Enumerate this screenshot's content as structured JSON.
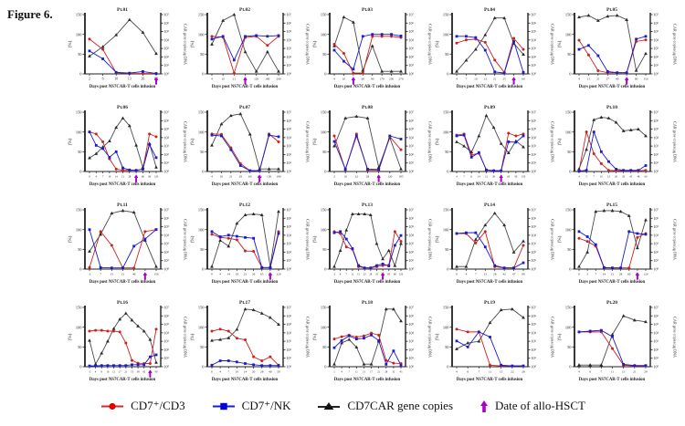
{
  "figure_label": "Figure 6.",
  "colors": {
    "cd7_cd3": "#cf2020",
    "cd7_nk": "#1a1acf",
    "car_line": "#4a4a4a",
    "car_marker": "#2a2a2a",
    "hsct": "#aa00cc",
    "axis": "#222222"
  },
  "legend": {
    "items": [
      {
        "name": "cd7-cd3",
        "label": "CD7⁺/CD3",
        "marker": "red-circle",
        "color": "#e00000"
      },
      {
        "name": "cd7-nk",
        "label": "CD7⁺/NK",
        "marker": "blue-square",
        "color": "#0000e0"
      },
      {
        "name": "car-copies",
        "label": "CD7CAR gene copies",
        "marker": "black-triangle",
        "color": "#111111"
      },
      {
        "name": "allo-hsct",
        "label": "Date of allo-HSCT",
        "marker": "purple-arrow",
        "color": "#aa00cc"
      }
    ]
  },
  "chart_data": {
    "type": "line",
    "layout": "4 rows x 5 columns of patient panels",
    "axes": {
      "left_label": "(%)",
      "left_ticks": [
        0,
        50,
        100,
        150
      ],
      "left_range": [
        0,
        150
      ],
      "right_label": "CAR gene copies/μg DNA",
      "right_ticks": [
        "10⁷",
        "10⁶",
        "10⁵",
        "10⁴",
        "10³",
        "10²",
        "10¹",
        "10⁰"
      ],
      "right_range_log10": [
        0,
        7
      ],
      "x_label": "Days post NS7CAR-T cells infusion"
    },
    "series_legend": [
      "CD7⁺/CD3 (% left axis)",
      "CD7⁺/NK (% left axis)",
      "CD7CAR gene copies (log10 copies/μg DNA, right axis)"
    ],
    "panels": [
      {
        "title": "Pt.01",
        "x": [
          2,
          6,
          10,
          13,
          26,
          60
        ],
        "cd7_cd3_pct": [
          88,
          62,
          3,
          1,
          1,
          1
        ],
        "cd7_nk_pct": [
          58,
          38,
          4,
          2,
          6,
          1
        ],
        "car_copies_log10": [
          2.1,
          3.2,
          4.6,
          6.4,
          4.9,
          2.4
        ],
        "allo_hsct_day": 60
      },
      {
        "title": "Pt.02",
        "x": [
          4,
          10,
          21,
          60,
          120,
          180,
          240
        ],
        "cd7_cd3_pct": [
          95,
          93,
          2,
          92,
          95,
          72,
          95
        ],
        "cd7_nk_pct": [
          88,
          95,
          35,
          95,
          97,
          95,
          97
        ],
        "car_copies_log10": [
          3.5,
          6.3,
          7.0,
          2.6,
          0.3,
          2.6,
          0.3
        ],
        "allo_hsct_day": 60
      },
      {
        "title": "Pt.03",
        "x": [
          4,
          10,
          30,
          60,
          90,
          170,
          230,
          270
        ],
        "cd7_cd3_pct": [
          75,
          52,
          2,
          2,
          95,
          95,
          95,
          92
        ],
        "cd7_nk_pct": [
          60,
          32,
          12,
          95,
          100,
          100,
          100,
          96
        ],
        "car_copies_log10": [
          3.3,
          6.7,
          6.1,
          0.4,
          3.3,
          0.3,
          0.3,
          0.3
        ],
        "allo_hsct_day": 30
      },
      {
        "title": "Pt.04",
        "x": [
          4,
          7,
          10,
          13,
          21,
          25,
          40,
          60
        ],
        "cd7_cd3_pct": [
          78,
          86,
          88,
          80,
          35,
          4,
          90,
          62
        ],
        "cd7_nk_pct": [
          95,
          95,
          92,
          60,
          5,
          2,
          82,
          4
        ],
        "car_copies_log10": [
          0.3,
          1.6,
          2.9,
          4.6,
          6.6,
          6.6,
          3.6,
          2.3
        ],
        "allo_hsct_day": 40
      },
      {
        "title": "Pt.05",
        "x": [
          4,
          11,
          21,
          27,
          40,
          56,
          90,
          150
        ],
        "cd7_cd3_pct": [
          85,
          48,
          8,
          3,
          3,
          3,
          82,
          86
        ],
        "cd7_nk_pct": [
          62,
          72,
          46,
          6,
          3,
          3,
          88,
          95
        ],
        "car_copies_log10": [
          6.7,
          6.9,
          6.3,
          6.8,
          6.9,
          6.4,
          0.4,
          2.4
        ],
        "allo_hsct_day": 56
      },
      {
        "title": "Pt.06",
        "x": [
          0,
          4,
          7,
          10,
          14,
          21,
          28,
          45,
          60,
          90,
          120
        ],
        "cd7_cd3_pct": [
          100,
          95,
          75,
          32,
          6,
          3,
          3,
          3,
          6,
          95,
          88
        ],
        "cd7_nk_pct": [
          100,
          66,
          58,
          36,
          50,
          9,
          4,
          3,
          6,
          68,
          35
        ],
        "car_copies_log10": [
          1.6,
          2.1,
          2.9,
          3.6,
          5.2,
          6.3,
          5.4,
          3.1,
          0.5,
          3.3,
          0.5
        ],
        "allo_hsct_day": 45
      },
      {
        "title": "Pt.07",
        "x": [
          4,
          10,
          21,
          29,
          60,
          110,
          150,
          190
        ],
        "cd7_cd3_pct": [
          95,
          94,
          60,
          20,
          2,
          2,
          95,
          75
        ],
        "cd7_nk_pct": [
          92,
          90,
          55,
          15,
          2,
          2,
          92,
          88
        ],
        "car_copies_log10": [
          3.1,
          5.6,
          6.6,
          6.8,
          4.4,
          0.3,
          0.3,
          0.3
        ],
        "allo_hsct_day": 110
      },
      {
        "title": "Pt.08",
        "x": [
          3,
          10,
          22,
          29,
          65,
          120,
          195
        ],
        "cd7_cd3_pct": [
          90,
          4,
          95,
          4,
          3,
          88,
          55
        ],
        "cd7_nk_pct": [
          76,
          6,
          90,
          6,
          5,
          90,
          82
        ],
        "car_copies_log10": [
          3.0,
          6.3,
          6.5,
          6.3,
          0.5,
          4.0,
          0.3
        ],
        "allo_hsct_day": 65
      },
      {
        "title": "Pt.09",
        "x": [
          4,
          7,
          11,
          14,
          21,
          28,
          45,
          60,
          90,
          150
        ],
        "cd7_cd3_pct": [
          92,
          95,
          42,
          46,
          4,
          2,
          2,
          97,
          90,
          95
        ],
        "cd7_nk_pct": [
          90,
          92,
          36,
          48,
          4,
          2,
          2,
          75,
          74,
          90
        ],
        "car_copies_log10": [
          3.5,
          3.0,
          2.3,
          4.2,
          6.6,
          5.2,
          3.3,
          2.2,
          3.6,
          2.9
        ],
        "allo_hsct_day": 45
      },
      {
        "title": "Pt.10",
        "x": [
          4,
          5,
          7,
          10,
          13,
          20,
          29,
          43,
          48,
          60
        ],
        "cd7_cd3_pct": [
          2,
          100,
          45,
          20,
          3,
          2,
          2,
          2,
          2,
          3
        ],
        "cd7_nk_pct": [
          1,
          3,
          100,
          50,
          25,
          6,
          3,
          3,
          3,
          15
        ],
        "car_copies_log10": [
          0.3,
          2.6,
          6.1,
          6.4,
          6.3,
          5.8,
          4.8,
          4.9,
          5.0,
          4.2
        ],
        "allo_hsct_day": null
      },
      {
        "title": "Pt.11",
        "x": [
          -2,
          7,
          15,
          21,
          46,
          90,
          150
        ],
        "cd7_cd3_pct": [
          4,
          95,
          60,
          3,
          3,
          95,
          100
        ],
        "cd7_nk_pct": [
          100,
          4,
          3,
          3,
          58,
          76,
          100
        ],
        "car_copies_log10": [
          2.1,
          4.1,
          6.6,
          6.9,
          6.7,
          3.4,
          0.3
        ],
        "allo_hsct_day": 90
      },
      {
        "title": "Pt.12",
        "x": [
          0,
          4,
          14,
          19,
          23,
          26,
          65,
          79,
          120
        ],
        "cd7_cd3_pct": [
          88,
          80,
          78,
          74,
          46,
          45,
          4,
          4,
          95
        ],
        "cd7_nk_pct": [
          95,
          82,
          86,
          83,
          80,
          78,
          4,
          4,
          90
        ],
        "car_copies_log10": [
          0.3,
          3.4,
          2.7,
          5.4,
          6.4,
          6.5,
          6.4,
          0.3,
          6.8
        ],
        "allo_hsct_day": 79
      },
      {
        "title": "Pt.13",
        "x": [
          -2,
          4,
          7,
          11,
          15,
          22,
          28,
          35,
          45,
          60,
          90,
          120
        ],
        "cd7_cd3_pct": [
          95,
          90,
          56,
          50,
          6,
          3,
          3,
          6,
          9,
          10,
          95,
          70
        ],
        "cd7_nk_pct": [
          92,
          95,
          76,
          52,
          9,
          3,
          3,
          9,
          13,
          8,
          60,
          85
        ],
        "car_copies_log10": [
          0.3,
          2.2,
          4.6,
          6.5,
          6.5,
          6.5,
          6.4,
          3.0,
          1.2,
          2.2,
          0.4,
          3.0
        ],
        "allo_hsct_day": 45
      },
      {
        "title": "Pt.14",
        "x": [
          0,
          4,
          7,
          13,
          28,
          42,
          47,
          60
        ],
        "cd7_cd3_pct": [
          90,
          90,
          66,
          95,
          6,
          3,
          3,
          60
        ],
        "cd7_nk_pct": [
          90,
          92,
          92,
          56,
          9,
          3,
          3,
          16
        ],
        "car_copies_log10": [
          0.3,
          0.3,
          3.5,
          5.2,
          6.6,
          5.2,
          2.0,
          3.3
        ],
        "allo_hsct_day": null
      },
      {
        "title": "Pt.15",
        "x": [
          0,
          3,
          7,
          14,
          21,
          28,
          60,
          90,
          120
        ],
        "cd7_cd3_pct": [
          78,
          70,
          58,
          3,
          3,
          3,
          3,
          80,
          90
        ],
        "cd7_nk_pct": [
          95,
          82,
          62,
          4,
          3,
          3,
          95,
          90,
          88
        ],
        "car_copies_log10": [
          0.3,
          2.0,
          6.8,
          6.9,
          6.9,
          6.8,
          6.3,
          2.5,
          5.8
        ],
        "allo_hsct_day": 90
      },
      {
        "title": "Pt.16",
        "x": [
          -2,
          4,
          8,
          10,
          12,
          17,
          21,
          31,
          38,
          42,
          60,
          90
        ],
        "cd7_cd3_pct": [
          90,
          92,
          92,
          90,
          90,
          88,
          60,
          16,
          9,
          8,
          8,
          95
        ],
        "cd7_nk_pct": [
          2,
          2,
          3,
          3,
          3,
          3,
          3,
          5,
          5,
          5,
          25,
          30
        ],
        "car_copies_log10": [
          3.1,
          0.3,
          1.6,
          3.0,
          4.5,
          5.6,
          6.3,
          5.5,
          4.8,
          4.2,
          3.2,
          0.5
        ],
        "allo_hsct_day": 60
      },
      {
        "title": "Pt.17",
        "x": [
          0,
          4,
          7,
          10,
          14,
          20,
          28,
          40,
          50
        ],
        "cd7_cd3_pct": [
          90,
          95,
          90,
          72,
          68,
          25,
          15,
          25,
          4
        ],
        "cd7_nk_pct": [
          4,
          15,
          15,
          12,
          8,
          5,
          3,
          3,
          3
        ],
        "car_copies_log10": [
          3.1,
          3.2,
          3.4,
          4.4,
          6.8,
          6.7,
          6.3,
          5.8,
          5.0
        ],
        "allo_hsct_day": null
      },
      {
        "title": "Pt.18",
        "x": [
          1,
          4,
          7,
          11,
          13,
          17,
          21,
          28,
          32,
          45
        ],
        "cd7_cd3_pct": [
          70,
          76,
          80,
          75,
          78,
          85,
          80,
          16,
          9,
          8
        ],
        "cd7_nk_pct": [
          48,
          66,
          78,
          70,
          72,
          80,
          66,
          6,
          40,
          4
        ],
        "car_copies_log10": [
          0.3,
          2.8,
          3.2,
          2.3,
          0.3,
          0.3,
          3.0,
          6.8,
          6.8,
          5.4
        ],
        "allo_hsct_day": null
      },
      {
        "title": "Pt.19",
        "x": [
          4,
          6,
          7,
          11,
          15,
          22,
          28
        ],
        "cd7_cd3_pct": [
          95,
          88,
          88,
          4,
          2,
          2,
          2
        ],
        "cd7_nk_pct": [
          65,
          50,
          88,
          75,
          4,
          2,
          2
        ],
        "car_copies_log10": [
          2.1,
          2.8,
          3.0,
          5.2,
          6.7,
          6.8,
          5.8
        ],
        "allo_hsct_day": null
      },
      {
        "title": "Pt.20",
        "x": [
          4,
          6,
          7,
          11,
          15,
          21,
          29
        ],
        "cd7_cd3_pct": [
          88,
          88,
          88,
          46,
          4,
          2,
          2
        ],
        "cd7_nk_pct": [
          88,
          90,
          92,
          76,
          6,
          3,
          3
        ],
        "car_copies_log10": [
          0.2,
          0.2,
          0.2,
          3.8,
          6.0,
          5.5,
          5.3
        ],
        "allo_hsct_day": null
      }
    ]
  }
}
